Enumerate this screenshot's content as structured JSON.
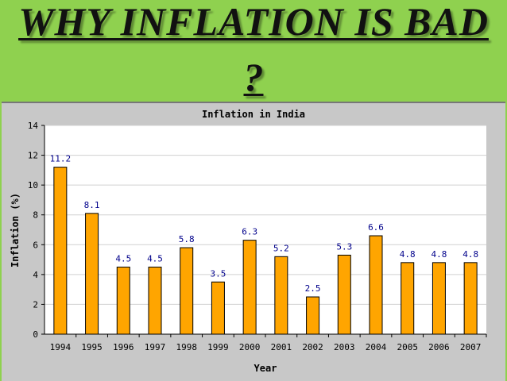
{
  "slide": {
    "title_line1": "WHY INFLATION IS BAD",
    "title_line2": "?"
  },
  "colors": {
    "slide_background": "#8fd14f",
    "chart_background": "#c8c8c8",
    "plot_background": "#ffffff",
    "bar_fill": "#ffa500",
    "value_label": "#00008b"
  },
  "chart_data": {
    "type": "bar",
    "title": "Inflation in India",
    "xlabel": "Year",
    "ylabel": "Inflation (%)",
    "categories": [
      "1994",
      "1995",
      "1996",
      "1997",
      "1998",
      "1999",
      "2000",
      "2001",
      "2002",
      "2003",
      "2004",
      "2005",
      "2006",
      "2007"
    ],
    "values": [
      11.2,
      8.1,
      4.5,
      4.5,
      5.8,
      3.5,
      6.3,
      5.2,
      2.5,
      5.3,
      6.6,
      4.8,
      4.8,
      4.8
    ],
    "value_labels": [
      "11.2",
      "8.1",
      "4.5",
      "4.5",
      "5.8",
      "3.5",
      "6.3",
      "5.2",
      "2.5",
      "5.3",
      "6.6",
      "4.8",
      "4.8",
      "4.8"
    ],
    "ylim": [
      0,
      14
    ],
    "yticks": [
      "0",
      "2",
      "4",
      "6",
      "8",
      "10",
      "12",
      "14"
    ],
    "grid": true,
    "legend": "none"
  }
}
